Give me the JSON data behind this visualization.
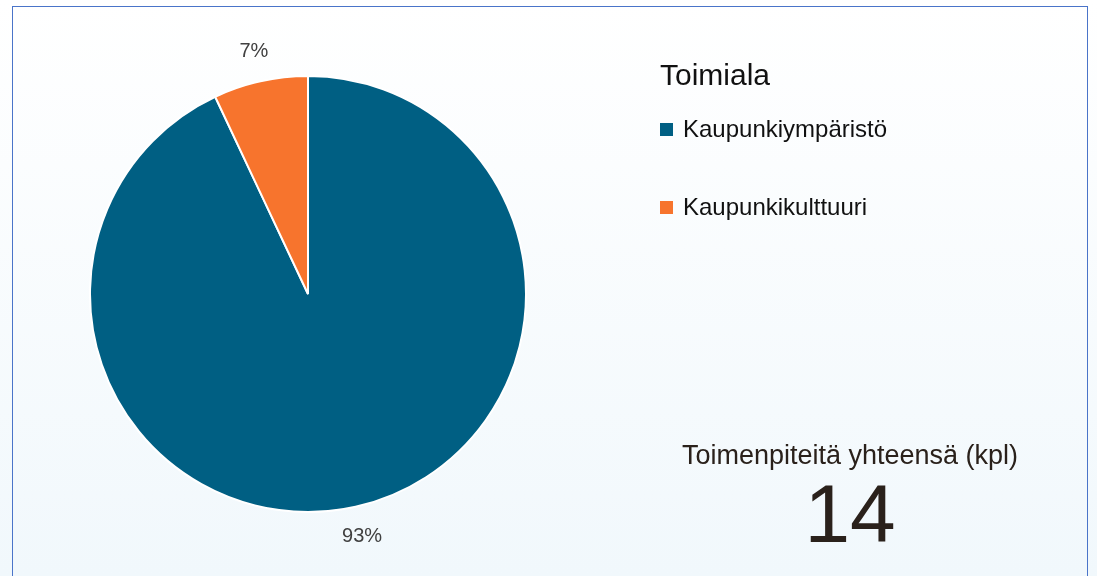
{
  "chart_data": [
    {
      "type": "pie",
      "categories": [
        "Kaupunkiympäristö",
        "Kaupunkikulttuuri"
      ],
      "values": [
        93,
        7
      ],
      "colors": [
        "#005f83",
        "#f7742d"
      ],
      "value_labels": [
        "93%",
        "7%"
      ],
      "legend": "right",
      "legend_title": "Toimiala"
    },
    {
      "type": "other",
      "title": "Toimenpiteitä yhteensä (kpl)",
      "annotations": [
        "14"
      ]
    }
  ]
}
